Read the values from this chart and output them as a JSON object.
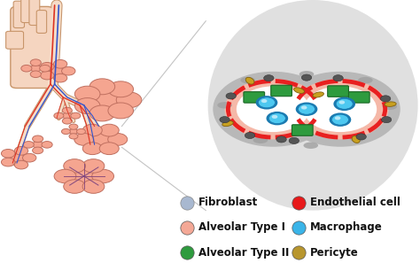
{
  "background_color": "#ffffff",
  "legend_items": [
    {
      "label": "Fibroblast",
      "color": "#a8b8d0",
      "col": 0
    },
    {
      "label": "Alveolar Type I",
      "color": "#f4a896",
      "col": 0
    },
    {
      "label": "Alveolar Type II",
      "color": "#2e9b3e",
      "col": 0
    },
    {
      "label": "Endothelial cell",
      "color": "#e8191a",
      "col": 1
    },
    {
      "label": "Macrophage",
      "color": "#3ab4e8",
      "col": 1
    },
    {
      "label": "Pericyte",
      "color": "#b8962e",
      "col": 1
    }
  ],
  "fig_width": 4.74,
  "fig_height": 2.97,
  "dpi": 100
}
